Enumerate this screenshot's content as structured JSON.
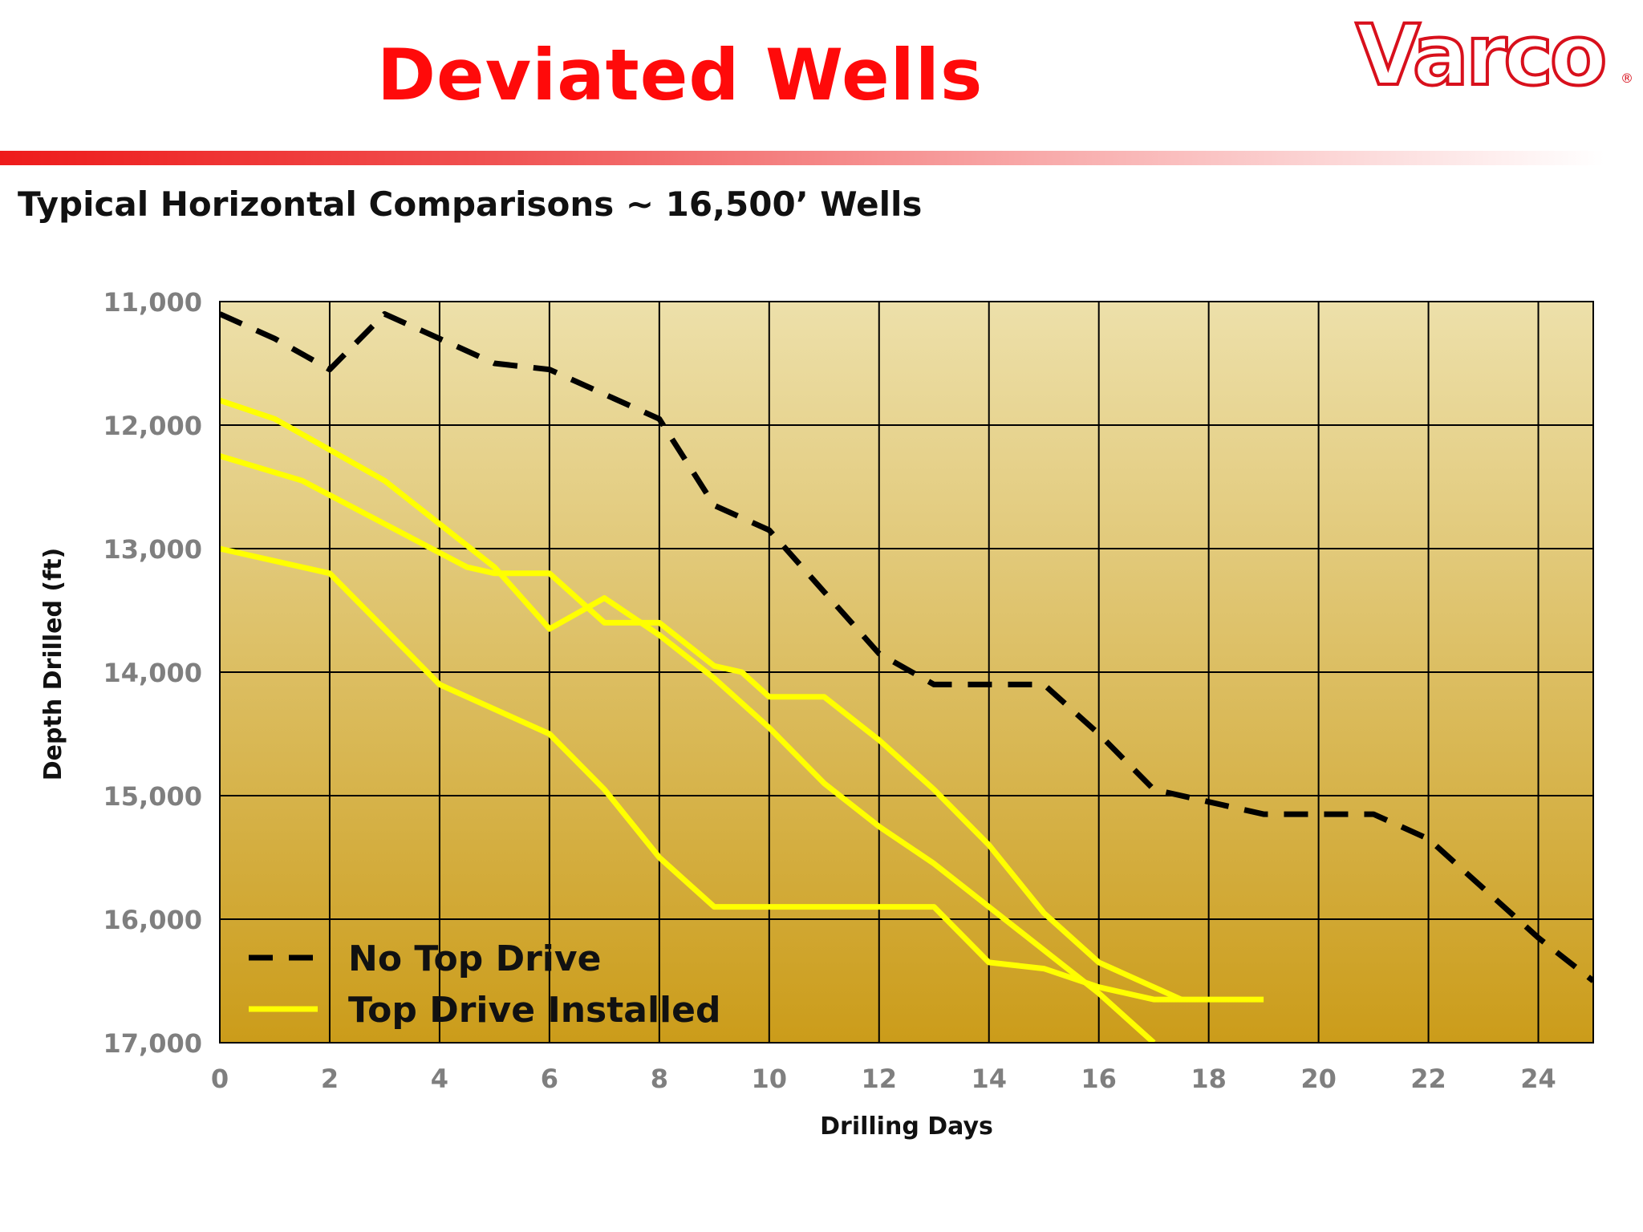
{
  "slide": {
    "title": "Deviated Wells",
    "subtitle": "Typical Horizontal Comparisons ~ 16,500’ Wells"
  },
  "brand": {
    "logo_text": "Varco",
    "logo_reg": "®",
    "logo_color": "#d8101c"
  },
  "chart_data": {
    "type": "line",
    "title": "",
    "xlabel": "Drilling Days",
    "ylabel": "Depth Drilled (ft)",
    "xlim": [
      0,
      25
    ],
    "ylim": [
      11000,
      17000
    ],
    "y_inverted": true,
    "grid": true,
    "x_ticks": [
      0,
      2,
      4,
      6,
      8,
      10,
      12,
      14,
      16,
      18,
      20,
      22,
      24
    ],
    "y_ticks": [
      11000,
      12000,
      13000,
      14000,
      15000,
      16000,
      17000
    ],
    "x_tick_labels": [
      "0",
      "2",
      "4",
      "6",
      "8",
      "10",
      "12",
      "14",
      "16",
      "18",
      "20",
      "22",
      "24"
    ],
    "y_tick_labels": [
      "11,000",
      "12,000",
      "13,000",
      "14,000",
      "15,000",
      "16,000",
      "17,000"
    ],
    "legend": {
      "position": "bottom-left",
      "entries": [
        {
          "label": "No Top Drive",
          "style": "dashed",
          "color": "#000000"
        },
        {
          "label": "Top Drive Installed",
          "style": "solid",
          "color": "#ffff00"
        }
      ]
    },
    "background_gradient": [
      "#ede0aa",
      "#cb9c1a"
    ],
    "series": [
      {
        "group": "No Top Drive",
        "color": "#000000",
        "style": "dashed",
        "x": [
          0,
          1,
          2,
          3,
          4,
          5,
          6,
          7,
          8,
          9,
          10,
          11,
          12,
          13,
          14,
          15,
          16,
          17,
          18,
          19,
          20,
          21,
          22,
          23,
          24,
          25
        ],
        "y": [
          11100,
          11300,
          11550,
          11100,
          11300,
          11500,
          11550,
          11750,
          11950,
          12650,
          12850,
          13350,
          13850,
          14100,
          14100,
          14100,
          14500,
          14950,
          15050,
          15150,
          15150,
          15150,
          15350,
          15750,
          16150,
          16500
        ]
      },
      {
        "group": "Top Drive Installed",
        "color": "#ffff00",
        "style": "solid",
        "x": [
          0,
          1,
          2,
          3,
          4,
          5,
          6,
          7,
          8,
          9,
          10,
          11,
          12,
          13,
          14,
          15,
          16,
          17
        ],
        "y": [
          11800,
          11950,
          12200,
          12450,
          12800,
          13150,
          13650,
          13400,
          13700,
          14050,
          14450,
          14900,
          15250,
          15550,
          15900,
          16250,
          16600,
          17000
        ]
      },
      {
        "group": "Top Drive Installed",
        "color": "#ffff00",
        "style": "solid",
        "x": [
          0,
          1.5,
          3,
          4.5,
          5,
          6,
          7,
          8,
          9,
          9.5,
          10,
          11,
          12,
          13,
          14,
          15,
          16,
          17,
          17.5
        ],
        "y": [
          12250,
          12450,
          12800,
          13150,
          13200,
          13200,
          13600,
          13600,
          13950,
          14000,
          14200,
          14200,
          14550,
          14950,
          15400,
          15950,
          16350,
          16550,
          16650
        ]
      },
      {
        "group": "Top Drive Installed",
        "color": "#ffff00",
        "style": "solid",
        "x": [
          0,
          2,
          3,
          4,
          5,
          6,
          7,
          8,
          9,
          10,
          11,
          12,
          13,
          14,
          15,
          16,
          17,
          18,
          19
        ],
        "y": [
          13000,
          13200,
          13650,
          14100,
          14300,
          14500,
          14950,
          15500,
          15900,
          15900,
          15900,
          15900,
          15900,
          16350,
          16400,
          16550,
          16650,
          16650,
          16650
        ]
      }
    ]
  }
}
